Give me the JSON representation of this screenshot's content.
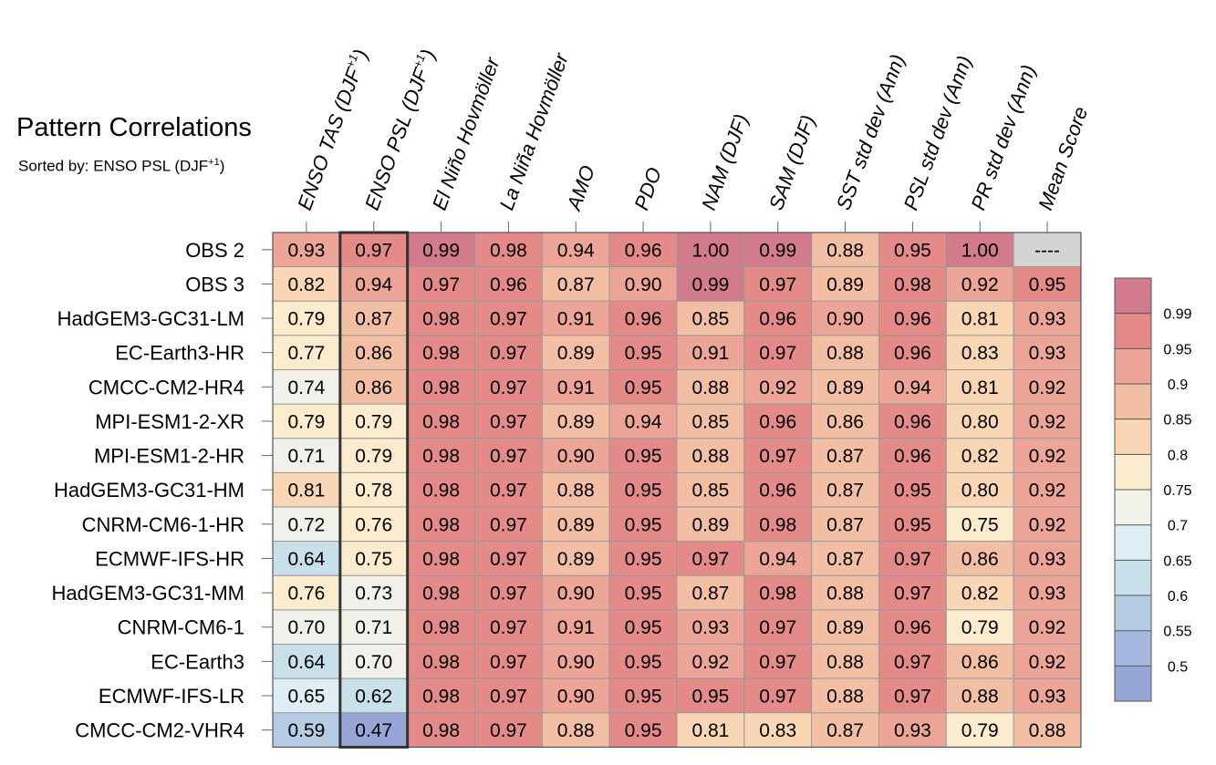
{
  "title": "Pattern Correlations",
  "subtitle": "Sorted by: ENSO PSL (DJF",
  "subtitle_sup": "+1",
  "subtitle_close": ")",
  "chart_data": {
    "type": "heatmap",
    "title": "Pattern Correlations",
    "columns": [
      {
        "label": "ENSO TAS (DJF",
        "sup": "+1",
        "close": ")"
      },
      {
        "label": "ENSO PSL (DJF",
        "sup": "+1",
        "close": ")"
      },
      {
        "label": "El Niño Hovmöller"
      },
      {
        "label": "La Niña Hovmöller"
      },
      {
        "label": "AMO"
      },
      {
        "label": "PDO"
      },
      {
        "label": "NAM (DJF)"
      },
      {
        "label": "SAM (DJF)"
      },
      {
        "label": "SST std dev (Ann)"
      },
      {
        "label": "PSL std dev (Ann)"
      },
      {
        "label": "PR std dev (Ann)"
      },
      {
        "label": "Mean Score"
      }
    ],
    "rows": [
      "OBS 2",
      "OBS 3",
      "HadGEM3-GC31-LM",
      "EC-Earth3-HR",
      "CMCC-CM2-HR4",
      "MPI-ESM1-2-XR",
      "MPI-ESM1-2-HR",
      "HadGEM3-GC31-HM",
      "CNRM-CM6-1-HR",
      "ECMWF-IFS-HR",
      "HadGEM3-GC31-MM",
      "CNRM-CM6-1",
      "EC-Earth3",
      "ECMWF-IFS-LR",
      "CMCC-CM2-VHR4"
    ],
    "values": [
      [
        "0.93",
        "0.97",
        "0.99",
        "0.98",
        "0.94",
        "0.96",
        "1.00",
        "0.99",
        "0.88",
        "0.95",
        "1.00",
        "----"
      ],
      [
        "0.82",
        "0.94",
        "0.97",
        "0.96",
        "0.87",
        "0.90",
        "0.99",
        "0.97",
        "0.89",
        "0.98",
        "0.92",
        "0.95"
      ],
      [
        "0.79",
        "0.87",
        "0.98",
        "0.97",
        "0.91",
        "0.96",
        "0.85",
        "0.96",
        "0.90",
        "0.96",
        "0.81",
        "0.93"
      ],
      [
        "0.77",
        "0.86",
        "0.98",
        "0.97",
        "0.89",
        "0.95",
        "0.91",
        "0.97",
        "0.88",
        "0.96",
        "0.83",
        "0.93"
      ],
      [
        "0.74",
        "0.86",
        "0.98",
        "0.97",
        "0.91",
        "0.95",
        "0.88",
        "0.92",
        "0.89",
        "0.94",
        "0.81",
        "0.92"
      ],
      [
        "0.79",
        "0.79",
        "0.98",
        "0.97",
        "0.89",
        "0.94",
        "0.85",
        "0.96",
        "0.86",
        "0.96",
        "0.80",
        "0.92"
      ],
      [
        "0.71",
        "0.79",
        "0.98",
        "0.97",
        "0.90",
        "0.95",
        "0.88",
        "0.97",
        "0.87",
        "0.96",
        "0.82",
        "0.92"
      ],
      [
        "0.81",
        "0.78",
        "0.98",
        "0.97",
        "0.88",
        "0.95",
        "0.85",
        "0.96",
        "0.87",
        "0.95",
        "0.80",
        "0.92"
      ],
      [
        "0.72",
        "0.76",
        "0.98",
        "0.97",
        "0.89",
        "0.95",
        "0.89",
        "0.98",
        "0.87",
        "0.95",
        "0.75",
        "0.92"
      ],
      [
        "0.64",
        "0.75",
        "0.98",
        "0.97",
        "0.89",
        "0.95",
        "0.97",
        "0.94",
        "0.87",
        "0.97",
        "0.86",
        "0.93"
      ],
      [
        "0.76",
        "0.73",
        "0.98",
        "0.97",
        "0.90",
        "0.95",
        "0.87",
        "0.98",
        "0.88",
        "0.97",
        "0.82",
        "0.93"
      ],
      [
        "0.70",
        "0.71",
        "0.98",
        "0.97",
        "0.91",
        "0.95",
        "0.93",
        "0.97",
        "0.89",
        "0.96",
        "0.79",
        "0.92"
      ],
      [
        "0.64",
        "0.70",
        "0.98",
        "0.97",
        "0.90",
        "0.95",
        "0.92",
        "0.97",
        "0.88",
        "0.97",
        "0.86",
        "0.92"
      ],
      [
        "0.65",
        "0.62",
        "0.98",
        "0.97",
        "0.90",
        "0.95",
        "0.95",
        "0.97",
        "0.88",
        "0.97",
        "0.88",
        "0.93"
      ],
      [
        "0.59",
        "0.47",
        "0.98",
        "0.97",
        "0.88",
        "0.95",
        "0.81",
        "0.83",
        "0.87",
        "0.93",
        "0.79",
        "0.88"
      ]
    ],
    "highlighted_column": 1,
    "missing_color": "#d4d4d4",
    "colorbar": {
      "levels": [
        "0.99",
        "0.95",
        "0.9",
        "0.85",
        "0.8",
        "0.75",
        "0.7",
        "0.65",
        "0.6",
        "0.55",
        "0.5"
      ],
      "colors": [
        "#d27b8c",
        "#e48a89",
        "#eda597",
        "#f3bfa4",
        "#f9d7b4",
        "#fcecce",
        "#f1f1ea",
        "#ddeff4",
        "#c8e0ea",
        "#b5cde4",
        "#a6b8de",
        "#97a6d6"
      ]
    }
  }
}
